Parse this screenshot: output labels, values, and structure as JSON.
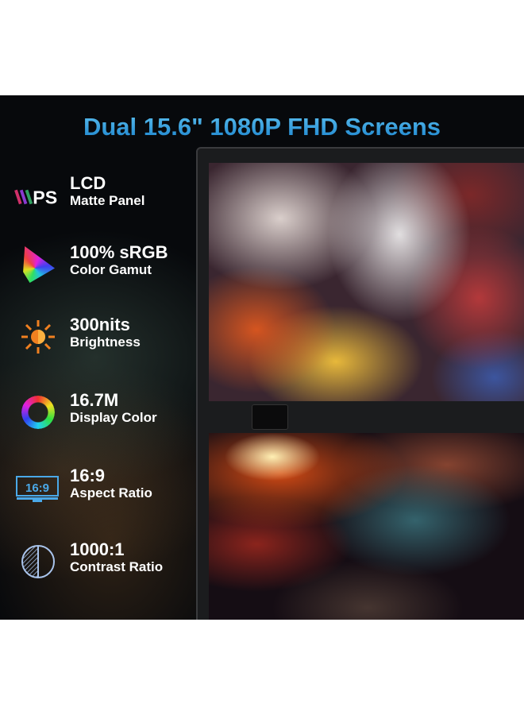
{
  "title": "Dual 15.6\" 1080P FHD Screens",
  "features": [
    {
      "icon": "ips-icon",
      "icon_text": "PS",
      "main": "LCD",
      "sub": "Matte Panel"
    },
    {
      "icon": "color-gamut-triangle-icon",
      "main": "100% sRGB",
      "sub": "Color Gamut"
    },
    {
      "icon": "brightness-sun-icon",
      "main": "300nits",
      "sub": "Brightness"
    },
    {
      "icon": "color-ring-icon",
      "main": "16.7M",
      "sub": "Display Color"
    },
    {
      "icon": "aspect-ratio-monitor-icon",
      "icon_text": "16:9",
      "main": "16:9",
      "sub": "Aspect Ratio"
    },
    {
      "icon": "contrast-circle-icon",
      "main": "1000:1",
      "sub": "Contrast Ratio"
    }
  ],
  "colors": {
    "title": "#3aa0e0",
    "background": "#07090c",
    "aspect_icon": "#4aa8e8",
    "contrast_icon": "#a9c4ec",
    "sun": "#f08020"
  }
}
